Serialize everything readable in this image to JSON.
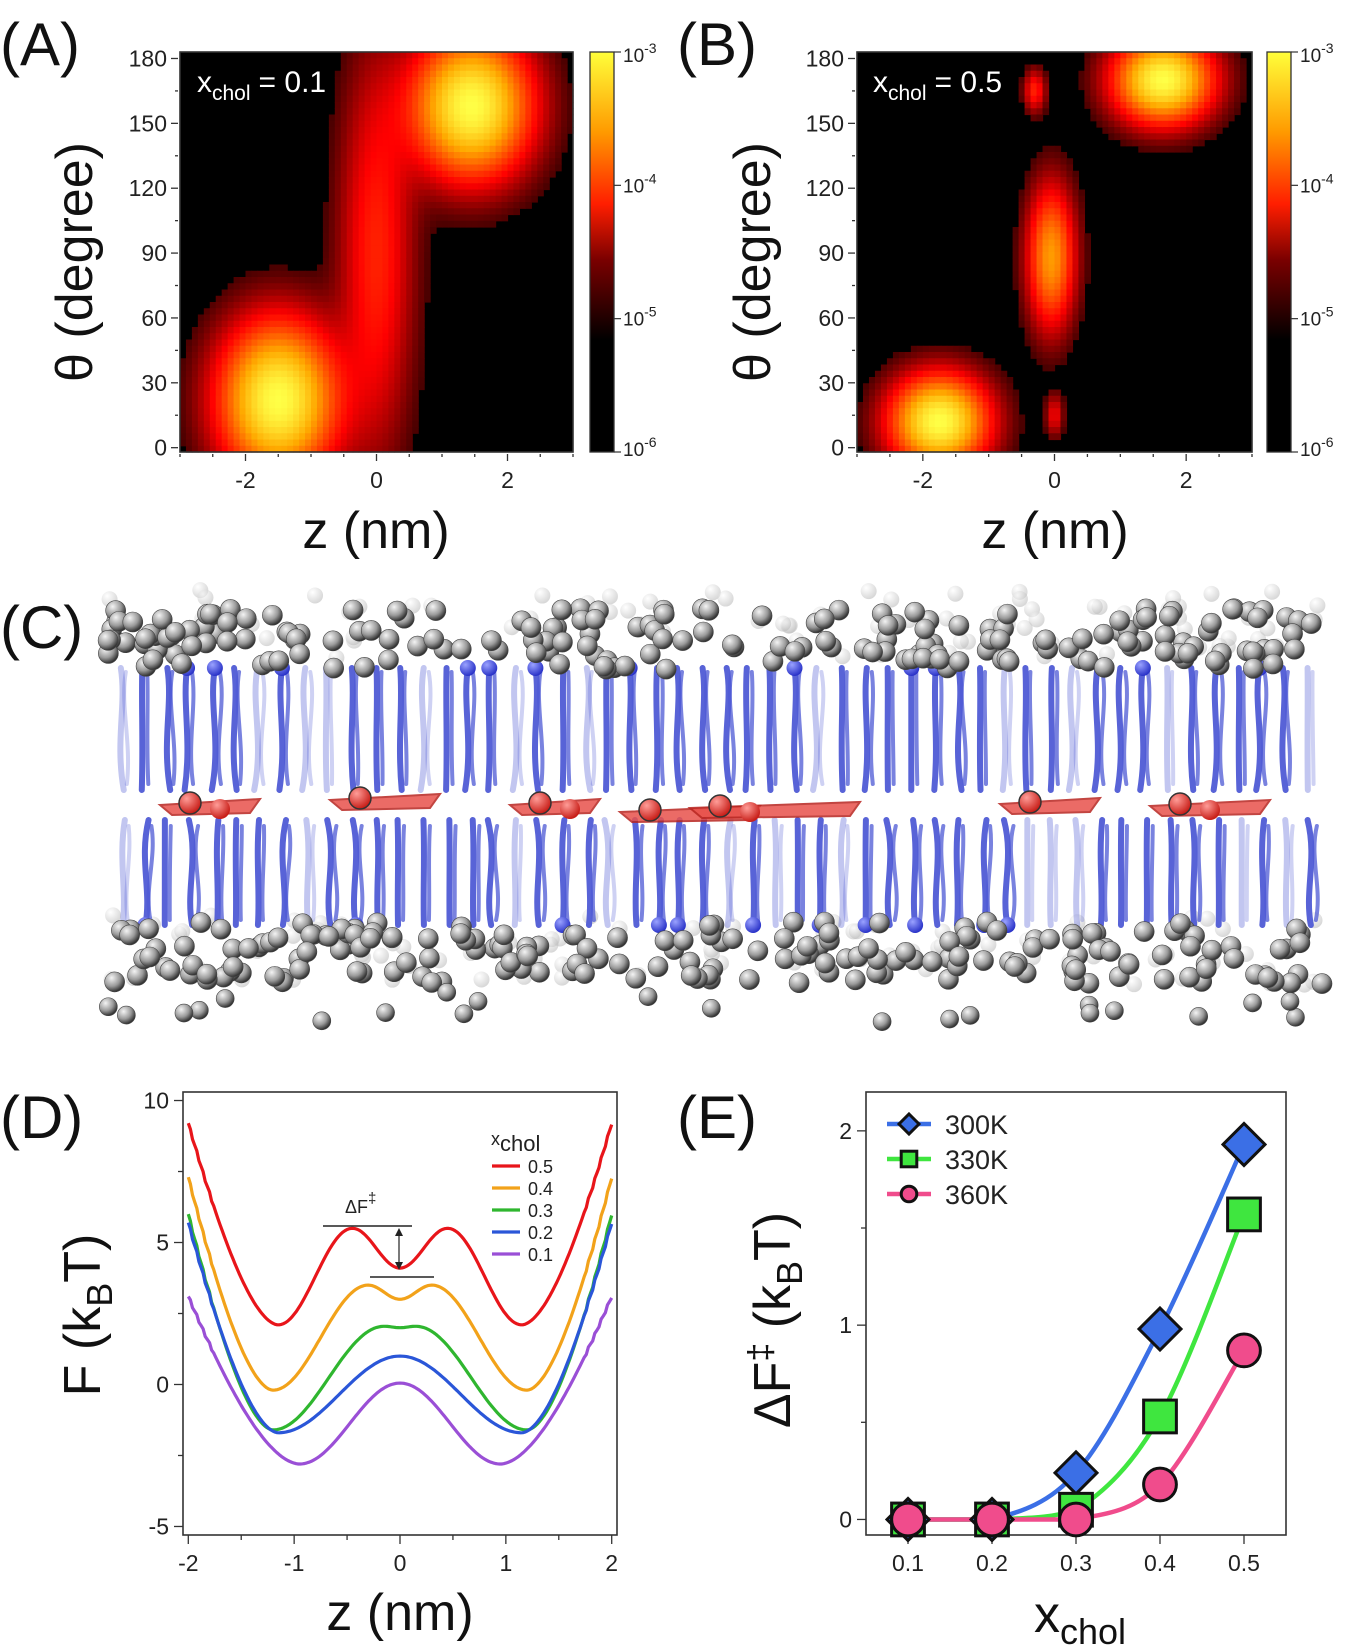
{
  "panel_labels": [
    "(A)",
    "(B)",
    "(C)",
    "(D)",
    "(E)"
  ],
  "colors": {
    "d_series": [
      "#e8151a",
      "#f2a21a",
      "#2fb62f",
      "#2a56d8",
      "#9a4fd6"
    ],
    "e_series": [
      "#3b6fe6",
      "#3fe63f",
      "#f04c8c"
    ],
    "lipid_head": "#8a8a8a",
    "lipid_tail": "#4f5bd5",
    "cholesterol": "#e8524c"
  },
  "chart_data": [
    {
      "id": "A",
      "type": "heatmap",
      "annotation_main": "x",
      "annotation_sub": "chol",
      "annotation_value": "= 0.1",
      "xlabel": "z (nm)",
      "ylabel": "θ (degree)",
      "xlim": [
        -3,
        3
      ],
      "ylim": [
        -2,
        183
      ],
      "xticks": [
        -2,
        0,
        2
      ],
      "xtick_labels": [
        "-2",
        "0",
        "2"
      ],
      "yticks": [
        0,
        30,
        60,
        90,
        120,
        150,
        180
      ],
      "ytick_labels": [
        "0",
        "30",
        "60",
        "90",
        "120",
        "150",
        "180"
      ],
      "colorbar_ticks": [
        "10",
        "10",
        "10",
        "10"
      ],
      "colorbar_exponents": [
        "-3",
        "-4",
        "-5",
        "-6"
      ],
      "blobs": [
        {
          "z": -1.5,
          "theta": 22,
          "sz": 0.55,
          "st": 22,
          "amp": 1.0
        },
        {
          "z": 1.45,
          "theta": 158,
          "sz": 0.55,
          "st": 20,
          "amp": 1.0
        },
        {
          "z": 0.0,
          "theta": 90,
          "sz": 0.35,
          "st": 55,
          "amp": 0.25
        }
      ]
    },
    {
      "id": "B",
      "type": "heatmap",
      "annotation_main": "x",
      "annotation_sub": "chol",
      "annotation_value": "= 0.5",
      "xlabel": "z (nm)",
      "ylabel": "θ (degree)",
      "xlim": [
        -3,
        3
      ],
      "ylim": [
        -2,
        183
      ],
      "xticks": [
        -2,
        0,
        2
      ],
      "xtick_labels": [
        "-2",
        "0",
        "2"
      ],
      "yticks": [
        0,
        30,
        60,
        90,
        120,
        150,
        180
      ],
      "ytick_labels": [
        "0",
        "30",
        "60",
        "90",
        "120",
        "150",
        "180"
      ],
      "colorbar_ticks": [
        "10",
        "10",
        "10",
        "10"
      ],
      "colorbar_exponents": [
        "-3",
        "-4",
        "-5",
        "-6"
      ],
      "blobs": [
        {
          "z": -1.75,
          "theta": 12,
          "sz": 0.45,
          "st": 13,
          "amp": 1.0
        },
        {
          "z": 1.65,
          "theta": 170,
          "sz": 0.45,
          "st": 12,
          "amp": 1.0
        },
        {
          "z": -0.05,
          "theta": 88,
          "sz": 0.22,
          "st": 20,
          "amp": 0.55
        },
        {
          "z": -0.3,
          "theta": 165,
          "sz": 0.1,
          "st": 6,
          "amp": 0.25
        },
        {
          "z": 0.0,
          "theta": 15,
          "sz": 0.08,
          "st": 6,
          "amp": 0.18
        }
      ]
    },
    {
      "id": "D",
      "type": "line",
      "xlabel": "z (nm)",
      "ylabel": "F (k",
      "ylabel_sub": "B",
      "ylabel_end": "T)",
      "xlim": [
        -2.05,
        2.05
      ],
      "ylim": [
        -5.3,
        10.3
      ],
      "xticks": [
        -2,
        -1,
        0,
        1,
        2
      ],
      "xtick_labels": [
        "-2",
        "-1",
        "0",
        "1",
        "2"
      ],
      "yticks": [
        -5,
        0,
        5,
        10
      ],
      "ytick_labels": [
        "-5",
        "0",
        "5",
        "10"
      ],
      "legend_title_main": "x",
      "legend_title_sub": "chol",
      "annotation": "ΔF",
      "annotation_sup": "‡",
      "series": [
        {
          "name": "0.5",
          "values": {
            "edge": 9.2,
            "well": 2.1,
            "wellz": 1.15,
            "peak": 5.5,
            "peakz": 0.45,
            "center": 4.1
          }
        },
        {
          "name": "0.4",
          "values": {
            "edge": 7.3,
            "well": -0.2,
            "wellz": 1.2,
            "peak": 3.5,
            "peakz": 0.3,
            "center": 3.0
          }
        },
        {
          "name": "0.3",
          "values": {
            "edge": 6.0,
            "well": -1.6,
            "wellz": 1.2,
            "peak": 2.05,
            "peakz": 0.15,
            "center": 2.0
          }
        },
        {
          "name": "0.2",
          "values": {
            "edge": 5.7,
            "well": -1.7,
            "wellz": 1.15,
            "peak": 1.0,
            "peakz": 0.0,
            "center": 1.0
          }
        },
        {
          "name": "0.1",
          "values": {
            "edge": 3.1,
            "well": -2.8,
            "wellz": 0.95,
            "peak": 0.05,
            "peakz": 0.0,
            "center": 0.05
          }
        }
      ]
    },
    {
      "id": "E",
      "type": "line",
      "xlabel_main": "x",
      "xlabel_sub": "chol",
      "ylabel": "ΔF",
      "ylabel_sup": "‡",
      "ylabel_rest": " (k",
      "ylabel_sub": "B",
      "ylabel_end": "T)",
      "xlim": [
        0.05,
        0.55
      ],
      "ylim": [
        -0.08,
        2.2
      ],
      "xticks": [
        0.1,
        0.2,
        0.3,
        0.4,
        0.5
      ],
      "xtick_labels": [
        "0.1",
        "0.2",
        "0.3",
        "0.4",
        "0.5"
      ],
      "yticks": [
        0,
        1,
        2
      ],
      "ytick_labels": [
        "0",
        "1",
        "2"
      ],
      "categories": [
        0.1,
        0.2,
        0.3,
        0.4,
        0.5
      ],
      "series": [
        {
          "name": "300K",
          "marker": "diamond",
          "values": [
            0.0,
            0.0,
            0.24,
            0.98,
            1.93
          ]
        },
        {
          "name": "330K",
          "marker": "square",
          "values": [
            0.0,
            0.0,
            0.05,
            0.53,
            1.57
          ]
        },
        {
          "name": "360K",
          "marker": "circle",
          "values": [
            0.0,
            0.0,
            0.0,
            0.18,
            0.87
          ]
        }
      ]
    }
  ]
}
